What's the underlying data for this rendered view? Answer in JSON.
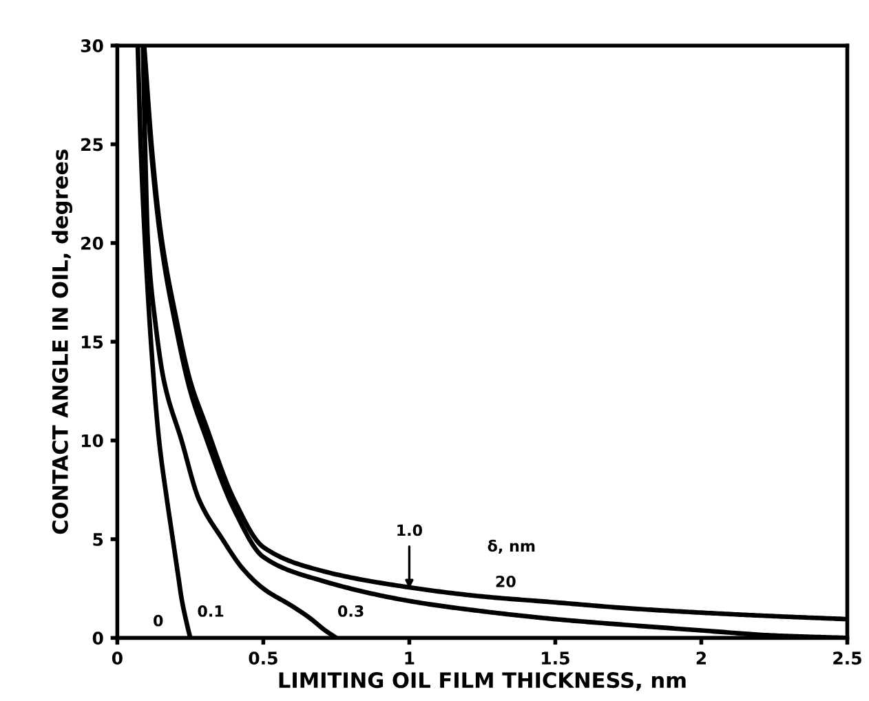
{
  "chart_data": {
    "type": "line",
    "xlabel": "LIMITING OIL FILM THICKNESS, nm",
    "ylabel": "CONTACT ANGLE IN OIL, degrees",
    "xlim": [
      0,
      2.5
    ],
    "ylim": [
      0,
      30
    ],
    "xticks": [
      0,
      0.5,
      1,
      1.5,
      2,
      2.5
    ],
    "yticks": [
      0,
      5,
      10,
      15,
      20,
      25,
      30
    ],
    "grid": false,
    "legend": false,
    "marker": "none",
    "line_style": "solid",
    "series": [
      {
        "color": "#000000",
        "x": [
          0.07,
          0.08,
          0.095,
          0.12,
          0.143,
          0.17,
          0.19,
          0.21,
          0.22,
          0.24,
          0.25
        ],
        "values": [
          30,
          25,
          20,
          14,
          10,
          7,
          5,
          3,
          2,
          0.6,
          0
        ]
      },
      {
        "color": "#000000",
        "x": [
          0.088,
          0.095,
          0.105,
          0.13,
          0.16,
          0.22,
          0.28,
          0.36,
          0.43,
          0.5,
          0.6,
          0.66,
          0.71,
          0.75
        ],
        "values": [
          30,
          25,
          20,
          16,
          13,
          10,
          7,
          5,
          3.5,
          2.5,
          1.6,
          1,
          0.4,
          0
        ]
      },
      {
        "color": "#000000",
        "x": [
          0.09,
          0.12,
          0.15,
          0.2,
          0.25,
          0.3,
          0.4,
          0.5,
          0.7,
          1,
          1.25,
          1.5,
          1.75,
          2,
          2.25,
          2.5
        ],
        "values": [
          30,
          24,
          20,
          15.8,
          12.5,
          10.3,
          6.5,
          4.1,
          2.9,
          1.87,
          1.35,
          0.95,
          0.65,
          0.38,
          0.12,
          0
        ]
      },
      {
        "color": "#000000",
        "x": [
          0.092,
          0.12,
          0.15,
          0.2,
          0.25,
          0.3,
          0.4,
          0.5,
          0.7,
          1,
          1.25,
          1.5,
          1.75,
          2,
          2.25,
          2.5
        ],
        "values": [
          30,
          24.5,
          20.4,
          16.3,
          13,
          10.9,
          7,
          4.6,
          3.4,
          2.56,
          2.1,
          1.8,
          1.5,
          1.28,
          1.1,
          0.95
        ]
      }
    ],
    "annotations": [
      "0",
      "0.1",
      "0.3",
      {
        "text": "1.0",
        "x": 1,
        "y": 2.3
      },
      "δ, nm",
      "20"
    ]
  }
}
